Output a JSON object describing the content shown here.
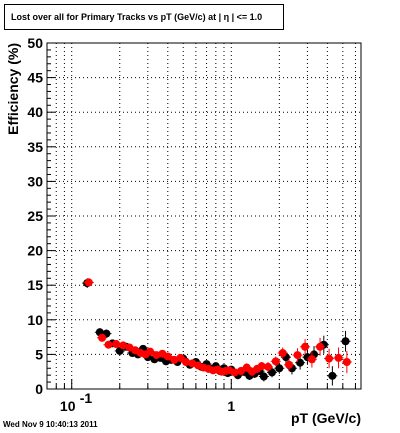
{
  "chart_data": {
    "type": "scatter",
    "title": "Lost over all for Primary Tracks vs pT (GeV/c) at |  η | <= 1.0",
    "xlabel": "pT (GeV/c)",
    "ylabel": "Efficiency (%)",
    "xscale": "log",
    "xlim": [
      0.07,
      6.5
    ],
    "ylim": [
      0,
      50
    ],
    "grid": true,
    "x_tick_labels": [
      {
        "value": 0.1,
        "base": "10",
        "exp": "-1"
      },
      {
        "value": 1,
        "base": "1",
        "exp": ""
      }
    ],
    "y_ticks": [
      0,
      5,
      10,
      15,
      20,
      25,
      30,
      35,
      40,
      45,
      50
    ],
    "series": [
      {
        "color": "#000000",
        "error_bar_color": "#000000",
        "points": [
          [
            0.125,
            15.3,
            0.7
          ],
          [
            0.15,
            8.2,
            0.6
          ],
          [
            0.165,
            8.0,
            0.6
          ],
          [
            0.18,
            6.6,
            0.5
          ],
          [
            0.2,
            5.5,
            0.5
          ],
          [
            0.22,
            6.1,
            0.5
          ],
          [
            0.24,
            5.2,
            0.5
          ],
          [
            0.26,
            5.0,
            0.5
          ],
          [
            0.28,
            5.8,
            0.5
          ],
          [
            0.3,
            4.6,
            0.5
          ],
          [
            0.33,
            4.3,
            0.5
          ],
          [
            0.36,
            4.5,
            0.5
          ],
          [
            0.39,
            4.0,
            0.5
          ],
          [
            0.42,
            4.2,
            0.5
          ],
          [
            0.46,
            3.9,
            0.5
          ],
          [
            0.5,
            4.4,
            0.5
          ],
          [
            0.55,
            3.5,
            0.5
          ],
          [
            0.6,
            3.9,
            0.5
          ],
          [
            0.65,
            3.2,
            0.5
          ],
          [
            0.7,
            3.6,
            0.5
          ],
          [
            0.75,
            2.9,
            0.5
          ],
          [
            0.8,
            3.3,
            0.5
          ],
          [
            0.85,
            2.6,
            0.5
          ],
          [
            0.9,
            3.0,
            0.5
          ],
          [
            0.95,
            2.3,
            0.5
          ],
          [
            1.0,
            2.8,
            0.5
          ],
          [
            1.1,
            2.0,
            0.6
          ],
          [
            1.2,
            2.5,
            0.6
          ],
          [
            1.3,
            1.9,
            0.6
          ],
          [
            1.4,
            2.2,
            0.6
          ],
          [
            1.5,
            2.6,
            0.6
          ],
          [
            1.6,
            1.8,
            0.7
          ],
          [
            1.8,
            2.4,
            0.7
          ],
          [
            2.0,
            3.0,
            0.8
          ],
          [
            2.2,
            4.6,
            0.9
          ],
          [
            2.4,
            3.0,
            0.9
          ],
          [
            2.7,
            3.8,
            1.0
          ],
          [
            3.0,
            4.6,
            1.1
          ],
          [
            3.3,
            5.0,
            1.2
          ],
          [
            3.8,
            6.4,
            1.3
          ],
          [
            4.3,
            1.9,
            1.4
          ],
          [
            5.2,
            6.9,
            1.5
          ]
        ]
      },
      {
        "color": "#ff0000",
        "error_bar_color": "#ff0000",
        "points": [
          [
            0.128,
            15.4,
            0.6
          ],
          [
            0.155,
            7.4,
            0.6
          ],
          [
            0.17,
            6.4,
            0.5
          ],
          [
            0.19,
            6.5,
            0.5
          ],
          [
            0.21,
            6.3,
            0.5
          ],
          [
            0.23,
            6.0,
            0.5
          ],
          [
            0.25,
            5.6,
            0.5
          ],
          [
            0.27,
            5.2,
            0.5
          ],
          [
            0.29,
            5.0,
            0.5
          ],
          [
            0.31,
            5.4,
            0.5
          ],
          [
            0.34,
            4.9,
            0.5
          ],
          [
            0.37,
            5.1,
            0.5
          ],
          [
            0.4,
            4.7,
            0.5
          ],
          [
            0.44,
            4.2,
            0.5
          ],
          [
            0.48,
            4.5,
            0.5
          ],
          [
            0.52,
            3.9,
            0.5
          ],
          [
            0.57,
            3.7,
            0.5
          ],
          [
            0.62,
            3.4,
            0.5
          ],
          [
            0.67,
            3.1,
            0.5
          ],
          [
            0.72,
            2.9,
            0.5
          ],
          [
            0.77,
            2.7,
            0.5
          ],
          [
            0.82,
            2.8,
            0.5
          ],
          [
            0.87,
            2.5,
            0.5
          ],
          [
            0.92,
            2.6,
            0.5
          ],
          [
            0.97,
            2.7,
            0.5
          ],
          [
            1.05,
            2.4,
            0.5
          ],
          [
            1.15,
            2.6,
            0.6
          ],
          [
            1.25,
            3.1,
            0.6
          ],
          [
            1.35,
            2.5,
            0.6
          ],
          [
            1.45,
            2.9,
            0.6
          ],
          [
            1.55,
            3.3,
            0.6
          ],
          [
            1.7,
            3.2,
            0.7
          ],
          [
            1.9,
            4.0,
            0.7
          ],
          [
            2.1,
            5.2,
            0.8
          ],
          [
            2.3,
            3.5,
            0.9
          ],
          [
            2.6,
            4.9,
            1.0
          ],
          [
            2.9,
            6.1,
            1.1
          ],
          [
            3.2,
            4.3,
            1.2
          ],
          [
            3.6,
            6.1,
            1.3
          ],
          [
            4.1,
            4.4,
            1.4
          ],
          [
            4.7,
            4.5,
            1.5
          ],
          [
            5.3,
            3.9,
            1.6
          ]
        ]
      }
    ]
  },
  "footer": {
    "timestamp": "Wed Nov  9 10:40:13 2011"
  }
}
